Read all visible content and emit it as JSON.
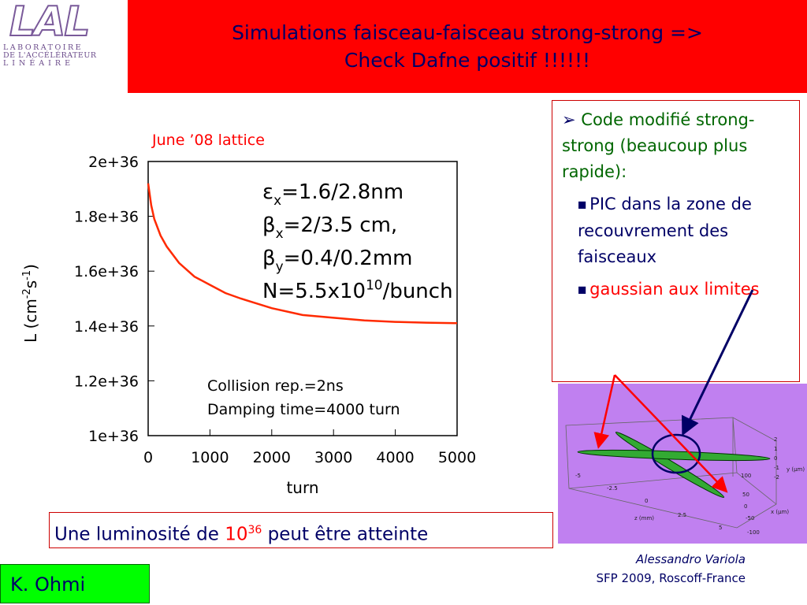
{
  "header": {
    "title_lines": [
      "Simulations faisceau-faisceau strong-strong =>",
      "Check Dafne positif !!!!!!"
    ],
    "logo": {
      "mark": "LAL",
      "lines": [
        "LABORATOIRE",
        "DE L'ACCÉLÉRATEUR",
        "LINÉAIRE"
      ]
    }
  },
  "chart_data": {
    "type": "line",
    "note": "June ’08 lattice",
    "xlabel": "turn",
    "ylabel_parts": [
      {
        "text": "L (cm"
      },
      {
        "text": "-2",
        "style": "sup"
      },
      {
        "text": "s"
      },
      {
        "text": "-1",
        "style": "sup"
      },
      {
        "text": ")"
      }
    ],
    "x": [
      0,
      50,
      100,
      200,
      300,
      500,
      750,
      1000,
      1250,
      1500,
      2000,
      2500,
      3000,
      3500,
      4000,
      4500,
      5000
    ],
    "series": [
      {
        "name": "L",
        "color": "#ff2a00",
        "values": [
          1.92e+36,
          1.84e+36,
          1.79e+36,
          1.73e+36,
          1.69e+36,
          1.63e+36,
          1.58e+36,
          1.55e+36,
          1.52e+36,
          1.5e+36,
          1.465e+36,
          1.44e+36,
          1.43e+36,
          1.42e+36,
          1.415e+36,
          1.412e+36,
          1.41e+36
        ]
      }
    ],
    "xlim": [
      0,
      5000
    ],
    "ylim": [
      1e+36,
      2e+36
    ],
    "xticks": [
      0,
      1000,
      2000,
      3000,
      4000,
      5000
    ],
    "yticks": [
      {
        "value": 1e+36,
        "label": "1e+36"
      },
      {
        "value": 1.2e+36,
        "label": "1.2e+36"
      },
      {
        "value": 1.4e+36,
        "label": "1.4e+36"
      },
      {
        "value": 1.6e+36,
        "label": "1.6e+36"
      },
      {
        "value": 1.8e+36,
        "label": "1.8e+36"
      },
      {
        "value": 2e+36,
        "label": "2e+36"
      }
    ],
    "annotations": [
      [
        {
          "text": "ε"
        },
        {
          "text": "x",
          "style": "sub"
        },
        {
          "text": "=1.6/2.8nm"
        }
      ],
      [
        {
          "text": "β"
        },
        {
          "text": "x",
          "style": "sub"
        },
        {
          "text": "=2/3.5 cm,"
        }
      ],
      [
        {
          "text": "β"
        },
        {
          "text": "y",
          "style": "sub"
        },
        {
          "text": "=0.4/0.2mm"
        }
      ],
      [
        {
          "text": "N=5.5x10"
        },
        {
          "text": "10",
          "style": "sup"
        },
        {
          "text": "/bunch"
        }
      ]
    ],
    "notes": [
      "Collision rep.=2ns",
      "Damping time=4000 turn"
    ]
  },
  "side_box": {
    "heading": "Code modifié strong-strong (beaucoup plus rapide):",
    "bullets": [
      "PIC dans la zone de recouvrement des faisceaux",
      "gaussian aux limites"
    ]
  },
  "plot3d": {
    "z_label": "z (mm)",
    "x_label": "x (μm)",
    "y_label": "y (μm)",
    "z_ticks": [
      "-5",
      "-2.5",
      "0",
      "2.5",
      "5"
    ],
    "x_ticks": [
      "100",
      "50",
      "0",
      "-50",
      "-100"
    ],
    "y_ticks": [
      "2",
      "1",
      "0",
      "-1",
      "-2"
    ]
  },
  "luminosity": {
    "before": "Une luminosité de ",
    "base": "10",
    "exp": "36",
    "after": " peut être atteinte"
  },
  "footer": {
    "author": "Alessandro Variola",
    "event": "SFP 2009, Roscoff-France",
    "credit": "K. Ohmi"
  }
}
